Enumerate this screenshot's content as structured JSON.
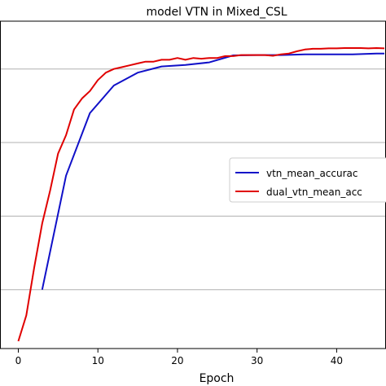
{
  "chart_data": {
    "type": "line",
    "title": "model VTN in Mixed_CSL",
    "xlabel": "Epoch",
    "ylabel": "",
    "xlim": [
      -2.3,
      46.2
    ],
    "ylim": [
      0.04,
      0.93
    ],
    "x_ticks": [
      0,
      10,
      20,
      30,
      40
    ],
    "y_gridlines": [
      0.2,
      0.4,
      0.6,
      0.8
    ],
    "grid": "horizontal",
    "legend_position": "center-right",
    "series": [
      {
        "name": "vtn_mean_accurac",
        "color": "#1010c8",
        "x": [
          3,
          6,
          9,
          12,
          15,
          18,
          21,
          24,
          27,
          30,
          33,
          36,
          39,
          42,
          45,
          46
        ],
        "y": [
          0.2,
          0.51,
          0.68,
          0.755,
          0.79,
          0.807,
          0.811,
          0.818,
          0.837,
          0.838,
          0.838,
          0.84,
          0.84,
          0.84,
          0.842,
          0.842
        ]
      },
      {
        "name": "dual_vtn_mean_acc",
        "color": "#e00000",
        "x": [
          0,
          1,
          2,
          3,
          4,
          5,
          6,
          7,
          8,
          9,
          10,
          11,
          12,
          13,
          14,
          15,
          16,
          17,
          18,
          19,
          20,
          21,
          22,
          23,
          24,
          25,
          26,
          27,
          28,
          29,
          30,
          31,
          32,
          33,
          34,
          35,
          36,
          37,
          38,
          39,
          40,
          41,
          42,
          43,
          44,
          45,
          46
        ],
        "y": [
          0.06,
          0.13,
          0.26,
          0.38,
          0.47,
          0.57,
          0.62,
          0.69,
          0.72,
          0.74,
          0.77,
          0.79,
          0.8,
          0.805,
          0.81,
          0.815,
          0.82,
          0.82,
          0.825,
          0.825,
          0.83,
          0.825,
          0.83,
          0.828,
          0.83,
          0.83,
          0.835,
          0.835,
          0.838,
          0.838,
          0.838,
          0.838,
          0.836,
          0.84,
          0.842,
          0.848,
          0.853,
          0.855,
          0.855,
          0.856,
          0.856,
          0.857,
          0.857,
          0.857,
          0.856,
          0.857,
          0.856
        ]
      }
    ]
  }
}
